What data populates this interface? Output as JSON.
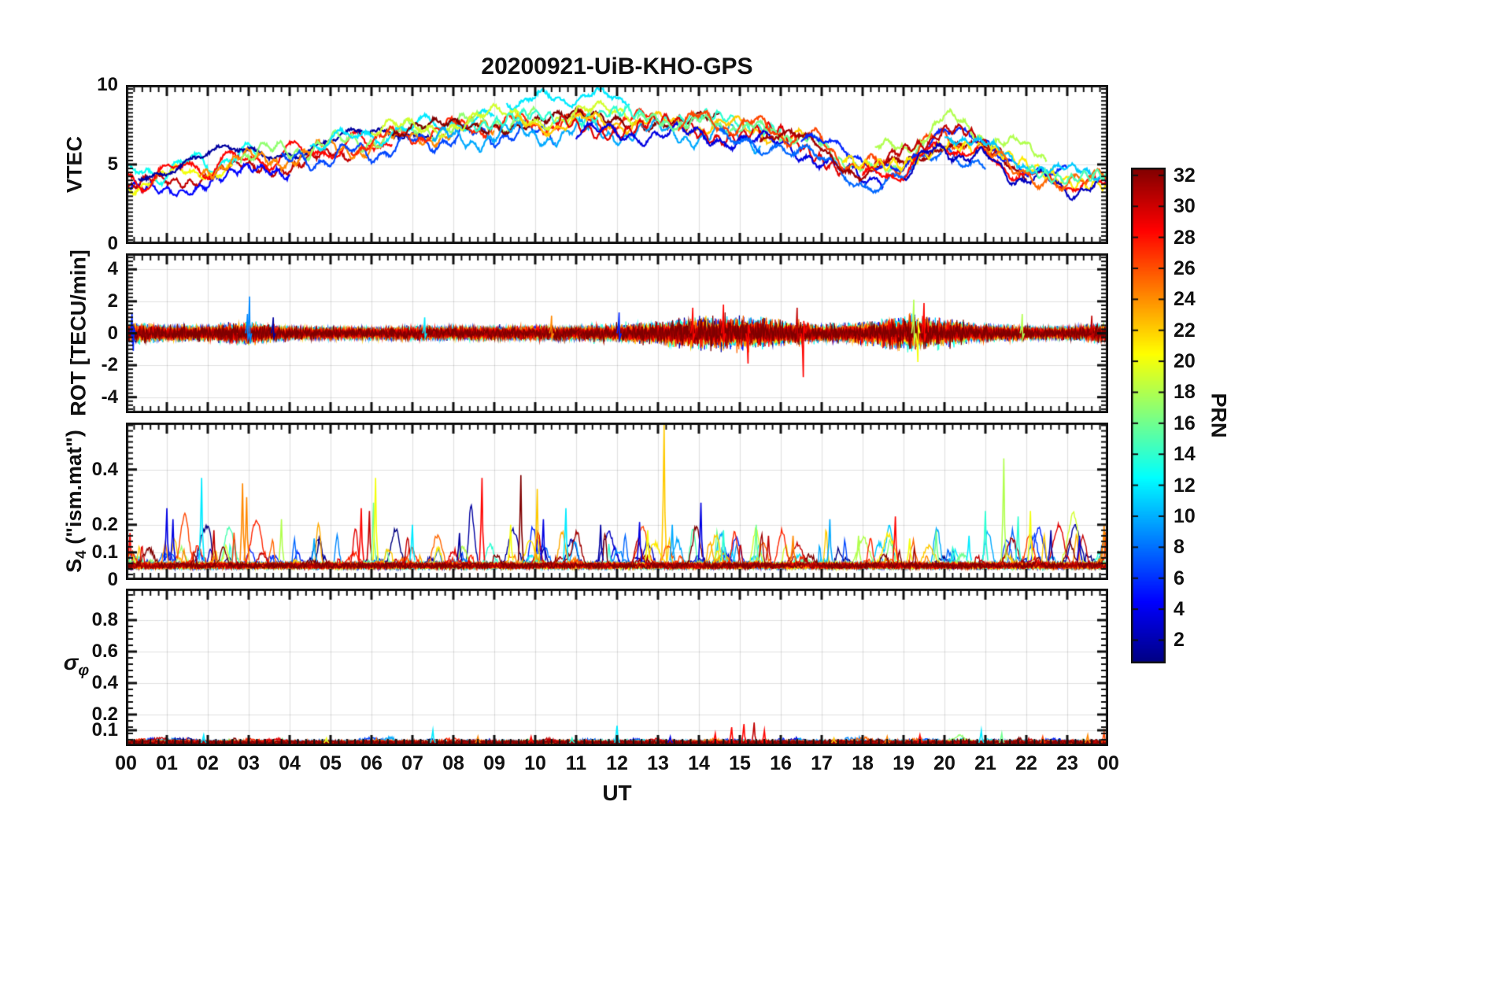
{
  "title": "20200921-UiB-KHO-GPS",
  "xlabel": "UT",
  "x_tick_labels": [
    "00",
    "01",
    "02",
    "03",
    "04",
    "05",
    "06",
    "07",
    "08",
    "09",
    "10",
    "11",
    "12",
    "13",
    "14",
    "15",
    "16",
    "17",
    "18",
    "19",
    "20",
    "21",
    "22",
    "23",
    "00"
  ],
  "colorbar": {
    "label": "PRN",
    "ticks": [
      2,
      4,
      6,
      8,
      10,
      12,
      14,
      16,
      18,
      20,
      22,
      24,
      26,
      28,
      30,
      32
    ],
    "colormap": "jet",
    "range": [
      1,
      32
    ]
  },
  "chart_data": [
    {
      "name": "VTEC",
      "type": "line",
      "ylabel": "VTEC",
      "ylim": [
        0,
        10
      ],
      "yticks": [
        0,
        5,
        10
      ],
      "xlim_hours": [
        0,
        24
      ],
      "series_colored_by": "PRN 1-32, jet colormap",
      "envelope_hourly": [
        3.9,
        4.4,
        4.9,
        5.2,
        5.5,
        5.9,
        6.2,
        6.7,
        7.1,
        7.3,
        7.4,
        7.5,
        7.6,
        7.5,
        7.4,
        7.2,
        6.8,
        6.0,
        4.4,
        4.9,
        6.6,
        5.7,
        4.6,
        4.1,
        3.9
      ],
      "arcs": [
        {
          "prn": 30,
          "t0": 0,
          "t1": 5.5,
          "off": -0.5
        },
        {
          "prn": 5,
          "t0": 0,
          "t1": 4.0,
          "off": -0.9
        },
        {
          "prn": 13,
          "t0": 0,
          "t1": 3.2,
          "off": 0.3
        },
        {
          "prn": 20,
          "t0": 0,
          "t1": 2.6,
          "off": -0.2
        },
        {
          "prn": 28,
          "t0": 0,
          "t1": 6.5,
          "off": 0.1
        },
        {
          "prn": 2,
          "t0": 0.3,
          "t1": 7.5,
          "off": 0.5
        },
        {
          "prn": 24,
          "t0": 1.8,
          "t1": 9.0,
          "off": 0.0
        },
        {
          "prn": 17,
          "t0": 2.8,
          "t1": 10.0,
          "off": 0.4
        },
        {
          "prn": 7,
          "t0": 3.8,
          "t1": 10.5,
          "off": -0.4
        },
        {
          "prn": 12,
          "t0": 4.5,
          "t1": 9.0,
          "off": 0.6
        },
        {
          "prn": 12,
          "t0": 9.3,
          "t1": 12.3,
          "off": 1.7
        },
        {
          "prn": 27,
          "t0": 5.5,
          "t1": 13.0,
          "off": 0.2
        },
        {
          "prn": 32,
          "t0": 6.5,
          "t1": 14.5,
          "off": 0.3
        },
        {
          "prn": 19,
          "t0": 6.0,
          "t1": 12.5,
          "off": 0.6
        },
        {
          "prn": 10,
          "t0": 7.5,
          "t1": 15.5,
          "off": -0.5
        },
        {
          "prn": 14,
          "t0": 8.5,
          "t1": 16.0,
          "off": 0.5
        },
        {
          "prn": 22,
          "t0": 9.5,
          "t1": 16.6,
          "off": 0.1
        },
        {
          "prn": 29,
          "t0": 10.5,
          "t1": 17.5,
          "off": -0.2
        },
        {
          "prn": 4,
          "t0": 11.0,
          "t1": 18.5,
          "off": -0.6
        },
        {
          "prn": 16,
          "t0": 12.5,
          "t1": 19.5,
          "off": 0.2
        },
        {
          "prn": 26,
          "t0": 13.5,
          "t1": 20.5,
          "off": 0.3
        },
        {
          "prn": 8,
          "t0": 14.5,
          "t1": 21.0,
          "off": -0.7
        },
        {
          "prn": 31,
          "t0": 15.5,
          "t1": 22.0,
          "off": 0.0
        },
        {
          "prn": 6,
          "t0": 16.5,
          "t1": 23.0,
          "off": 0.4
        },
        {
          "prn": 18,
          "t0": 18.3,
          "t1": 22.5,
          "off": 1.2
        },
        {
          "prn": 30,
          "t0": 18.0,
          "t1": 21.5,
          "off": 0.7
        },
        {
          "prn": 21,
          "t0": 17.5,
          "t1": 24,
          "off": 0.1
        },
        {
          "prn": 28,
          "t0": 18.0,
          "t1": 24,
          "off": -0.3
        },
        {
          "prn": 3,
          "t0": 19.0,
          "t1": 24,
          "off": -0.5
        },
        {
          "prn": 11,
          "t0": 20.0,
          "t1": 24,
          "off": 0.4
        },
        {
          "prn": 25,
          "t0": 21.0,
          "t1": 24,
          "off": -0.1
        },
        {
          "prn": 15,
          "t0": 22.0,
          "t1": 24,
          "off": 0.2
        }
      ]
    },
    {
      "name": "ROT",
      "type": "line",
      "ylabel": "ROT [TECU/min]",
      "ylim": [
        -5,
        5
      ],
      "yticks": [
        -4,
        -2,
        0,
        2,
        4
      ],
      "xlim_hours": [
        0,
        24
      ],
      "n_series": 30,
      "amplitude_hourly": [
        0.22,
        0.15,
        0.15,
        0.22,
        0.13,
        0.12,
        0.12,
        0.13,
        0.13,
        0.13,
        0.14,
        0.14,
        0.16,
        0.22,
        0.3,
        0.32,
        0.26,
        0.16,
        0.2,
        0.34,
        0.26,
        0.16,
        0.13,
        0.12,
        0.2
      ],
      "spikes": [
        {
          "t": 0.15,
          "v": 1.3,
          "prn": 6
        },
        {
          "t": 0.18,
          "v": -1.1,
          "prn": 6
        },
        {
          "t": 2.97,
          "v": 1.2,
          "prn": 9
        },
        {
          "t": 3.02,
          "v": 2.3,
          "prn": 9
        },
        {
          "t": 3.6,
          "v": 1.0,
          "prn": 2
        },
        {
          "t": 7.3,
          "v": 1.0,
          "prn": 12
        },
        {
          "t": 10.4,
          "v": 1.1,
          "prn": 24
        },
        {
          "t": 12.05,
          "v": 1.3,
          "prn": 6
        },
        {
          "t": 13.85,
          "v": 1.6,
          "prn": 28
        },
        {
          "t": 14.6,
          "v": 1.8,
          "prn": 28
        },
        {
          "t": 15.2,
          "v": -1.9,
          "prn": 28
        },
        {
          "t": 16.4,
          "v": 1.6,
          "prn": 30
        },
        {
          "t": 16.55,
          "v": -2.75,
          "prn": 28
        },
        {
          "t": 19.25,
          "v": 2.1,
          "prn": 18
        },
        {
          "t": 19.35,
          "v": -1.8,
          "prn": 20
        },
        {
          "t": 19.5,
          "v": 1.9,
          "prn": 28
        },
        {
          "t": 21.9,
          "v": 1.2,
          "prn": 18
        },
        {
          "t": 23.6,
          "v": 1.1,
          "prn": 30
        }
      ]
    },
    {
      "name": "S4",
      "type": "line",
      "ylabel": "S4 (\"ism.mat\")",
      "ylabel_main": "S",
      "ylabel_sub": "4",
      "ylabel_rest": " (\"ism.mat\")",
      "ylim": [
        0,
        0.57
      ],
      "yticks": [
        0,
        0.1,
        0.2,
        0.4
      ],
      "xlim_hours": [
        0,
        24
      ],
      "n_series": 28,
      "baseline": 0.06,
      "spikes": [
        {
          "t": 0.1,
          "v": 0.17,
          "prn": 28
        },
        {
          "t": 1.0,
          "v": 0.26,
          "prn": 4
        },
        {
          "t": 1.15,
          "v": 0.22,
          "prn": 4
        },
        {
          "t": 1.85,
          "v": 0.37,
          "prn": 12
        },
        {
          "t": 2.15,
          "v": 0.18,
          "prn": 30
        },
        {
          "t": 2.85,
          "v": 0.35,
          "prn": 24
        },
        {
          "t": 2.95,
          "v": 0.3,
          "prn": 24
        },
        {
          "t": 3.8,
          "v": 0.22,
          "prn": 18
        },
        {
          "t": 4.6,
          "v": 0.15,
          "prn": 10
        },
        {
          "t": 5.75,
          "v": 0.26,
          "prn": 28
        },
        {
          "t": 5.95,
          "v": 0.25,
          "prn": 30
        },
        {
          "t": 6.05,
          "v": 0.28,
          "prn": 16
        },
        {
          "t": 6.1,
          "v": 0.37,
          "prn": 20
        },
        {
          "t": 7.0,
          "v": 0.2,
          "prn": 12
        },
        {
          "t": 8.15,
          "v": 0.17,
          "prn": 2
        },
        {
          "t": 8.7,
          "v": 0.37,
          "prn": 28
        },
        {
          "t": 9.4,
          "v": 0.2,
          "prn": 20
        },
        {
          "t": 9.65,
          "v": 0.38,
          "prn": 32
        },
        {
          "t": 10.05,
          "v": 0.33,
          "prn": 22
        },
        {
          "t": 10.2,
          "v": 0.22,
          "prn": 4
        },
        {
          "t": 10.75,
          "v": 0.26,
          "prn": 12
        },
        {
          "t": 11.6,
          "v": 0.2,
          "prn": 2
        },
        {
          "t": 12.55,
          "v": 0.21,
          "prn": 4
        },
        {
          "t": 12.75,
          "v": 0.18,
          "prn": 20
        },
        {
          "t": 13.15,
          "v": 0.57,
          "prn": 22
        },
        {
          "t": 13.35,
          "v": 0.2,
          "prn": 10
        },
        {
          "t": 14.05,
          "v": 0.28,
          "prn": 4
        },
        {
          "t": 14.6,
          "v": 0.18,
          "prn": 14
        },
        {
          "t": 15.4,
          "v": 0.2,
          "prn": 16
        },
        {
          "t": 15.7,
          "v": 0.16,
          "prn": 30
        },
        {
          "t": 16.3,
          "v": 0.16,
          "prn": 24
        },
        {
          "t": 17.2,
          "v": 0.22,
          "prn": 10
        },
        {
          "t": 17.9,
          "v": 0.16,
          "prn": 18
        },
        {
          "t": 18.8,
          "v": 0.23,
          "prn": 28
        },
        {
          "t": 19.15,
          "v": 0.15,
          "prn": 20
        },
        {
          "t": 19.8,
          "v": 0.18,
          "prn": 16
        },
        {
          "t": 20.6,
          "v": 0.16,
          "prn": 12
        },
        {
          "t": 21.0,
          "v": 0.25,
          "prn": 14
        },
        {
          "t": 21.45,
          "v": 0.44,
          "prn": 18
        },
        {
          "t": 21.8,
          "v": 0.23,
          "prn": 14
        },
        {
          "t": 22.1,
          "v": 0.25,
          "prn": 20
        },
        {
          "t": 22.6,
          "v": 0.18,
          "prn": 2
        },
        {
          "t": 23.3,
          "v": 0.16,
          "prn": 4
        },
        {
          "t": 23.9,
          "v": 0.2,
          "prn": 24
        },
        {
          "t": 23.95,
          "v": 0.17,
          "prn": 26
        }
      ]
    },
    {
      "name": "sigma_phi",
      "type": "line",
      "ylabel": "σ_φ",
      "ylabel_main": "σ",
      "ylabel_sub": "φ",
      "ylim": [
        0,
        1
      ],
      "yticks": [
        0.1,
        0.2,
        0.4,
        0.6,
        0.8
      ],
      "xlim_hours": [
        0,
        24
      ],
      "n_series": 28,
      "baseline": 0.02,
      "spikes": [
        {
          "t": 1.9,
          "v": 0.07,
          "prn": 12
        },
        {
          "t": 4.9,
          "v": 0.05,
          "prn": 20
        },
        {
          "t": 7.5,
          "v": 0.1,
          "prn": 12
        },
        {
          "t": 8.6,
          "v": 0.06,
          "prn": 24
        },
        {
          "t": 9.9,
          "v": 0.06,
          "prn": 28
        },
        {
          "t": 10.9,
          "v": 0.05,
          "prn": 14
        },
        {
          "t": 12.0,
          "v": 0.13,
          "prn": 12
        },
        {
          "t": 13.3,
          "v": 0.06,
          "prn": 4
        },
        {
          "t": 14.4,
          "v": 0.08,
          "prn": 28
        },
        {
          "t": 14.8,
          "v": 0.12,
          "prn": 28
        },
        {
          "t": 15.1,
          "v": 0.14,
          "prn": 28
        },
        {
          "t": 15.35,
          "v": 0.15,
          "prn": 30
        },
        {
          "t": 15.6,
          "v": 0.1,
          "prn": 28
        },
        {
          "t": 17.3,
          "v": 0.05,
          "prn": 22
        },
        {
          "t": 18.6,
          "v": 0.06,
          "prn": 24
        },
        {
          "t": 19.4,
          "v": 0.07,
          "prn": 28
        },
        {
          "t": 20.9,
          "v": 0.1,
          "prn": 12
        },
        {
          "t": 21.4,
          "v": 0.08,
          "prn": 16
        },
        {
          "t": 22.4,
          "v": 0.06,
          "prn": 26
        },
        {
          "t": 23.5,
          "v": 0.07,
          "prn": 24
        },
        {
          "t": 23.9,
          "v": 0.09,
          "prn": 26
        }
      ]
    }
  ]
}
